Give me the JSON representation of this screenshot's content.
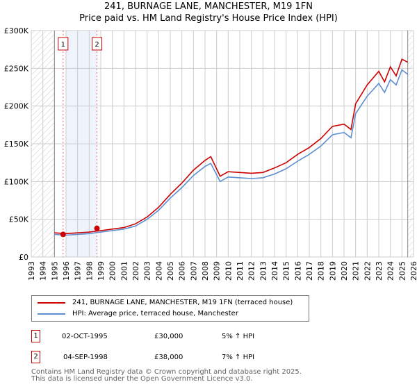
{
  "title": "241, BURNAGE LANE, MANCHESTER, M19 1FN",
  "subtitle": "Price paid vs. HM Land Registry's House Price Index (HPI)",
  "chart_data": {
    "type": "line",
    "title": "241, BURNAGE LANE, MANCHESTER, M19 1FN",
    "subtitle": "Price paid vs. HM Land Registry's House Price Index (HPI)",
    "xlim": [
      1993,
      2026
    ],
    "ylim": [
      0,
      300000
    ],
    "x_ticks": [
      "1993",
      "1994",
      "1995",
      "1996",
      "1997",
      "1998",
      "1999",
      "2000",
      "2001",
      "2002",
      "2003",
      "2004",
      "2005",
      "2006",
      "2007",
      "2008",
      "2009",
      "2010",
      "2011",
      "2012",
      "2013",
      "2014",
      "2015",
      "2016",
      "2017",
      "2018",
      "2019",
      "2020",
      "2021",
      "2022",
      "2023",
      "2024",
      "2025",
      "2026"
    ],
    "y_ticks": [
      {
        "v": 0,
        "label": "£0"
      },
      {
        "v": 50000,
        "label": "£50K"
      },
      {
        "v": 100000,
        "label": "£100K"
      },
      {
        "v": 150000,
        "label": "£150K"
      },
      {
        "v": 200000,
        "label": "£200K"
      },
      {
        "v": 250000,
        "label": "£250K"
      },
      {
        "v": 300000,
        "label": "£300K"
      }
    ],
    "grid": true,
    "x": [
      1995,
      1996,
      1997,
      1998,
      1999,
      2000,
      2001,
      2002,
      2003,
      2004,
      2005,
      2006,
      2007,
      2008,
      2008.5,
      2009.3,
      2010,
      2011,
      2012,
      2013,
      2014,
      2015,
      2016,
      2017,
      2018,
      2019,
      2020,
      2020.6,
      2021,
      2022,
      2023,
      2023.5,
      2024,
      2024.5,
      2025,
      2025.5
    ],
    "series": [
      {
        "name": "241, BURNAGE LANE, MANCHESTER, M19 1FN (terraced house)",
        "color": "#cc0000",
        "values": [
          32000,
          31000,
          32000,
          33000,
          35000,
          37000,
          39000,
          44000,
          53000,
          66000,
          83000,
          98000,
          115000,
          128000,
          133000,
          107000,
          113000,
          112000,
          111000,
          112000,
          118000,
          125000,
          136000,
          145000,
          157000,
          173000,
          176000,
          169000,
          203000,
          228000,
          246000,
          232000,
          252000,
          240000,
          262000,
          258000
        ]
      },
      {
        "name": "HPI: Average price, terraced house, Manchester",
        "color": "#5b8fd0",
        "values": [
          30000,
          29000,
          30000,
          31000,
          33000,
          35000,
          37000,
          41000,
          50000,
          62000,
          78000,
          92000,
          108000,
          120000,
          124000,
          100000,
          106000,
          105000,
          104000,
          105000,
          110000,
          117000,
          127000,
          136000,
          147000,
          162000,
          165000,
          158000,
          190000,
          213000,
          230000,
          218000,
          235000,
          228000,
          248000,
          242000
        ]
      }
    ],
    "sales": [
      {
        "label": "1",
        "x": 1995.75,
        "value": 30000
      },
      {
        "label": "2",
        "x": 1998.67,
        "value": 38000
      }
    ],
    "highlight_range": [
      1996,
      1998.67
    ],
    "hatched_ranges": [
      [
        1993,
        1995
      ],
      [
        2025.5,
        2026
      ]
    ],
    "legend_position": "below"
  },
  "legend": [
    {
      "label": "241, BURNAGE LANE, MANCHESTER, M19 1FN (terraced house)",
      "color": "#cc0000"
    },
    {
      "label": "HPI: Average price, terraced house, Manchester",
      "color": "#5b8fd0"
    }
  ],
  "transactions": [
    {
      "num": "1",
      "date": "02-OCT-1995",
      "price": "£30,000",
      "hpi": "5% ↑ HPI"
    },
    {
      "num": "2",
      "date": "04-SEP-1998",
      "price": "£38,000",
      "hpi": "7% ↑ HPI"
    }
  ],
  "footer": [
    "Contains HM Land Registry data © Crown copyright and database right 2025.",
    "This data is licensed under the Open Government Licence v3.0."
  ]
}
